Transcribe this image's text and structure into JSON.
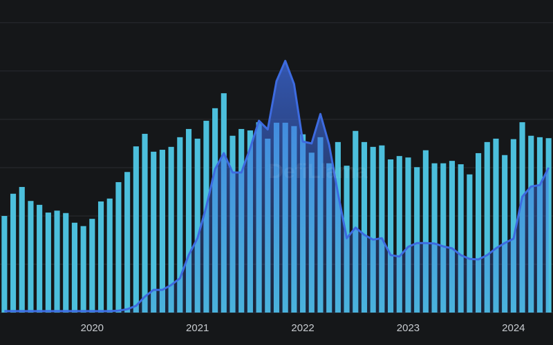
{
  "chart_data": {
    "type": "bar",
    "watermark": "DefiLlama",
    "categories": [
      null,
      null,
      null,
      null,
      null,
      null,
      null,
      null,
      null,
      null,
      "2020",
      null,
      null,
      null,
      null,
      null,
      null,
      null,
      null,
      null,
      null,
      null,
      "2021",
      null,
      null,
      null,
      null,
      null,
      null,
      null,
      null,
      null,
      null,
      null,
      "2022",
      null,
      null,
      null,
      null,
      null,
      null,
      null,
      null,
      null,
      null,
      null,
      "2023",
      null,
      null,
      null,
      null,
      null,
      null,
      null,
      null,
      null,
      null,
      null,
      "2024",
      null,
      null,
      null,
      null
    ],
    "ylim": [
      0,
      6.47
    ],
    "yticks": [
      0,
      1,
      2,
      3,
      4,
      5,
      6
    ],
    "grid": true,
    "series": [
      {
        "type": "bar",
        "color": "#4cbfdc",
        "values": [
          2.0,
          2.46,
          2.6,
          2.31,
          2.23,
          2.07,
          2.11,
          2.06,
          1.86,
          1.79,
          1.94,
          2.3,
          2.36,
          2.7,
          2.91,
          3.44,
          3.7,
          3.33,
          3.37,
          3.43,
          3.63,
          3.8,
          3.6,
          3.97,
          4.23,
          4.54,
          3.66,
          3.8,
          3.77,
          3.94,
          3.6,
          3.93,
          3.93,
          3.86,
          3.69,
          3.31,
          3.63,
          3.09,
          3.53,
          3.04,
          3.76,
          3.53,
          3.43,
          3.46,
          3.17,
          3.24,
          3.21,
          3.01,
          3.36,
          3.09,
          3.09,
          3.14,
          3.07,
          2.86,
          3.3,
          3.53,
          3.6,
          3.26,
          3.59,
          3.94,
          3.66,
          3.63,
          3.61
        ]
      },
      {
        "type": "area",
        "color": "#3d6be0",
        "values": [
          0.03,
          0.03,
          0.03,
          0.03,
          0.03,
          0.03,
          0.03,
          0.03,
          0.03,
          0.03,
          0.03,
          0.03,
          0.03,
          0.04,
          0.07,
          0.14,
          0.33,
          0.47,
          0.47,
          0.57,
          0.71,
          1.19,
          1.54,
          2.19,
          2.97,
          3.3,
          2.9,
          2.9,
          3.4,
          3.97,
          3.79,
          4.79,
          5.21,
          4.73,
          3.54,
          3.5,
          4.11,
          3.47,
          2.47,
          1.54,
          1.76,
          1.61,
          1.51,
          1.54,
          1.19,
          1.16,
          1.36,
          1.44,
          1.44,
          1.43,
          1.37,
          1.33,
          1.19,
          1.11,
          1.1,
          1.19,
          1.33,
          1.44,
          1.53,
          2.4,
          2.61,
          2.64,
          3.0
        ]
      }
    ]
  }
}
